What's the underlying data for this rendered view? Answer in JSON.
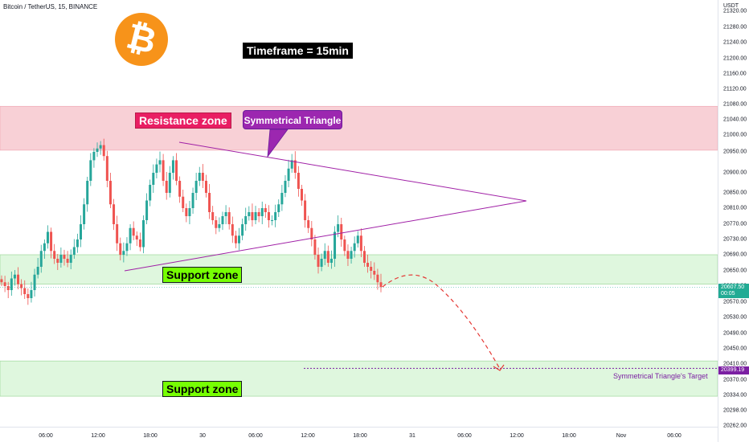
{
  "header": {
    "symbol": "Bitcoin / TetherUS, 15, BINANCE"
  },
  "axis_unit": "USDT",
  "y_ticks": [
    "21320.00",
    "21280.00",
    "21240.00",
    "21200.00",
    "21160.00",
    "21120.00",
    "21080.00",
    "21040.00",
    "21000.00",
    "20950.00",
    "20900.00",
    "20850.00",
    "20810.00",
    "20770.00",
    "20730.00",
    "20690.00",
    "20650.00",
    "20610.00",
    "20570.00",
    "20530.00",
    "20490.00",
    "20450.00",
    "20410.00",
    "20370.00",
    "20334.00",
    "20298.00",
    "20262.00"
  ],
  "x_ticks": [
    "06:00",
    "12:00",
    "18:00",
    "30",
    "06:00",
    "12:00",
    "18:00",
    "31",
    "06:00",
    "12:00",
    "18:00",
    "Nov",
    "06:00"
  ],
  "price_badge": {
    "price": "20607.50",
    "countdown": "00:05",
    "color": "#22ab94"
  },
  "target_badge": {
    "price": "20399.19",
    "color": "#7b1fa2"
  },
  "annotations": {
    "timeframe": "Timeframe = 15min",
    "resistance": "Resistance zone",
    "support1": "Support zone",
    "support2": "Support zone",
    "triangle_callout": "Symmetrical Triangle",
    "target_label": "Symmetrical Triangle's Target"
  },
  "logo": {
    "name": "bitcoin-logo",
    "color": "#f7931a"
  },
  "colors": {
    "up": "#26a69a",
    "down": "#ef5350",
    "resistance_fill": "#f8d0d6",
    "support_fill": "#dff7de",
    "triangle": "#a020a6"
  },
  "chart_data": {
    "type": "candlestick",
    "timeframe": "15min",
    "ylim": [
      20262,
      21320
    ],
    "resistance_zone": [
      20955,
      21085
    ],
    "support_zone_1": [
      20615,
      20690
    ],
    "support_zone_2": [
      20332,
      20418
    ],
    "triangle_target": 20399.19,
    "last_price": 20607.5,
    "closes": [
      20620,
      20610,
      20600,
      20630,
      20640,
      20615,
      20605,
      20590,
      20580,
      20600,
      20640,
      20660,
      20700,
      20720,
      20750,
      20700,
      20680,
      20670,
      20690,
      20680,
      20670,
      20690,
      20710,
      20730,
      20770,
      20820,
      20880,
      20930,
      20950,
      20960,
      20970,
      20940,
      20880,
      20820,
      20770,
      20720,
      20690,
      20700,
      20720,
      20760,
      20740,
      20730,
      20710,
      20780,
      20830,
      20870,
      20900,
      20920,
      20930,
      20880,
      20850,
      20900,
      20930,
      20880,
      20840,
      20810,
      20790,
      20810,
      20850,
      20880,
      20900,
      20880,
      20850,
      20800,
      20780,
      20760,
      20770,
      20790,
      20800,
      20770,
      20740,
      20720,
      20740,
      20770,
      20790,
      20800,
      20780,
      20800,
      20790,
      20810,
      20800,
      20780,
      20780,
      20800,
      20820,
      20850,
      20880,
      20910,
      20930,
      20900,
      20860,
      20830,
      20780,
      20760,
      20730,
      20690,
      20660,
      20680,
      20700,
      20670,
      20680,
      20750,
      20770,
      20730,
      20700,
      20680,
      20700,
      20720,
      20740,
      20700,
      20670,
      20660,
      20650,
      20640,
      20620,
      20607.5
    ]
  }
}
